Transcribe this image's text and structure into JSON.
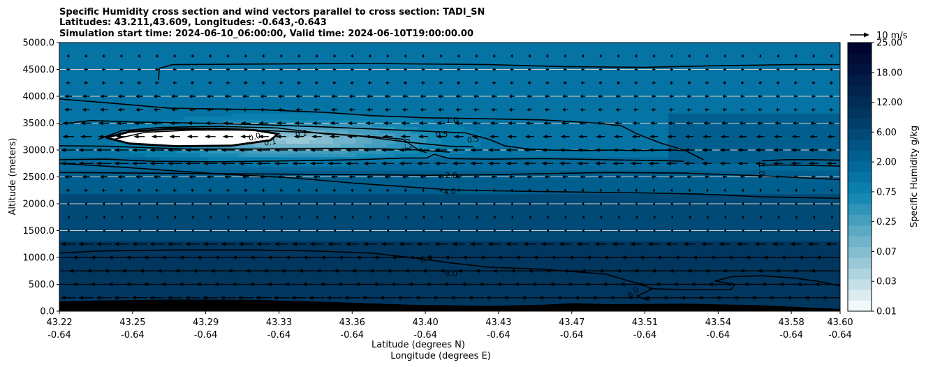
{
  "chart_data": {
    "type": "contourf",
    "title_lines": [
      "Specific Humidity cross section and wind vectors parallel to cross section: TADI_SN",
      "Latitudes: 43.211,43.609, Longitudes: -0.643,-0.643",
      "Simulation start time: 2024-06-10_06:00:00, Valid time: 2024-06-10T19:00:00.00"
    ],
    "xlabel_lines": [
      "Latitude (degrees N)",
      "Longitude (degrees E)"
    ],
    "ylabel": "Altitude (meters)",
    "xlim": [
      0,
      1
    ],
    "ylim": [
      0,
      5000
    ],
    "x_ticks": [
      {
        "pos": 0.0,
        "lat": "43.22",
        "lon": "-0.64"
      },
      {
        "pos": 0.0938,
        "lat": "43.25",
        "lon": "-0.64"
      },
      {
        "pos": 0.1875,
        "lat": "43.29",
        "lon": "-0.64"
      },
      {
        "pos": 0.2813,
        "lat": "43.33",
        "lon": "-0.64"
      },
      {
        "pos": 0.375,
        "lat": "43.36",
        "lon": "-0.64"
      },
      {
        "pos": 0.4688,
        "lat": "43.40",
        "lon": "-0.64"
      },
      {
        "pos": 0.5625,
        "lat": "43.43",
        "lon": "-0.64"
      },
      {
        "pos": 0.6563,
        "lat": "43.47",
        "lon": "-0.64"
      },
      {
        "pos": 0.75,
        "lat": "43.51",
        "lon": "-0.64"
      },
      {
        "pos": 0.8438,
        "lat": "43.54",
        "lon": "-0.64"
      },
      {
        "pos": 0.9375,
        "lat": "43.58",
        "lon": "-0.64"
      },
      {
        "pos": 1.0,
        "lat": "43.60",
        "lon": "-0.64"
      }
    ],
    "y_ticks": [
      {
        "value": 0,
        "label": "0.0"
      },
      {
        "value": 500,
        "label": "500.0"
      },
      {
        "value": 1000,
        "label": "1000.0"
      },
      {
        "value": 1500,
        "label": "1500.0"
      },
      {
        "value": 2000,
        "label": "2000.0"
      },
      {
        "value": 2500,
        "label": "2500.0"
      },
      {
        "value": 3000,
        "label": "3000.0"
      },
      {
        "value": 3500,
        "label": "3500.0"
      },
      {
        "value": 4000,
        "label": "4000.0"
      },
      {
        "value": 4500,
        "label": "4500.0"
      },
      {
        "value": 5000,
        "label": "5000.0"
      }
    ],
    "grid": "horizontal",
    "grid_color": "#d0d0d0",
    "colorbar": {
      "label": "Specific Humidity g/kg",
      "tick_labels": [
        "0.01",
        "0.03",
        "0.07",
        "0.25",
        "0.75",
        "2.00",
        "6.00",
        "12.00",
        "18.00",
        "25.00"
      ],
      "colors": [
        "#f2f9fa",
        "#dcedf0",
        "#c4e1e8",
        "#aed5df",
        "#99c9d7",
        "#85bed0",
        "#71b3ca",
        "#5ca9c4",
        "#469ebf",
        "#2f94ba",
        "#1689b4",
        "#0a7fad",
        "#0574a4",
        "#02699a",
        "#015f8f",
        "#015483",
        "#014a77",
        "#01406b",
        "#01365f",
        "#012c55",
        "#01234d",
        "#011c47",
        "#01143f",
        "#010c37",
        "#010630"
      ]
    },
    "humidity_bands": [
      {
        "y_bottom": 0,
        "y_top": 1300,
        "q": 9.5
      },
      {
        "y_bottom": 1300,
        "y_top": 2200,
        "q": 5.5
      },
      {
        "y_bottom": 2200,
        "y_top": 2600,
        "q": 3.0
      },
      {
        "y_bottom": 2600,
        "y_top": 2900,
        "q": 1.6
      },
      {
        "y_bottom": 2900,
        "y_top": 3700,
        "q": 1.2
      },
      {
        "y_bottom": 3700,
        "y_top": 5000,
        "q": 1.5
      }
    ],
    "dry_layer": {
      "x_min": 0.06,
      "x_max": 0.55,
      "y_min": 2700,
      "y_max": 3700,
      "q_min": 0.05
    },
    "moist_patch": {
      "x_min": 0.78,
      "x_max": 1.0,
      "y_min": 2750,
      "y_max": 3700,
      "q": 2.2
    },
    "white_region": [
      [
        0.06,
        3230
      ],
      [
        0.09,
        3340
      ],
      [
        0.14,
        3390
      ],
      [
        0.2,
        3400
      ],
      [
        0.25,
        3370
      ],
      [
        0.28,
        3300
      ],
      [
        0.27,
        3180
      ],
      [
        0.22,
        3080
      ],
      [
        0.15,
        3070
      ],
      [
        0.09,
        3120
      ],
      [
        0.06,
        3230
      ]
    ],
    "contours": [
      {
        "level": "upper",
        "points": [
          [
            0.127,
            4300
          ],
          [
            0.128,
            4520
          ],
          [
            0.145,
            4590
          ],
          [
            0.25,
            4600
          ],
          [
            0.4,
            4610
          ],
          [
            0.55,
            4590
          ],
          [
            0.65,
            4550
          ],
          [
            0.75,
            4540
          ],
          [
            0.85,
            4570
          ],
          [
            0.94,
            4590
          ],
          [
            1.0,
            4590
          ]
        ]
      },
      {
        "level": "1.0a",
        "points": [
          [
            0.0,
            3950
          ],
          [
            0.06,
            3880
          ],
          [
            0.14,
            3780
          ],
          [
            0.26,
            3750
          ],
          [
            0.34,
            3700
          ],
          [
            0.4,
            3640
          ],
          [
            0.47,
            3600
          ],
          [
            0.55,
            3580
          ],
          [
            0.62,
            3560
          ],
          [
            0.69,
            3500
          ],
          [
            0.72,
            3450
          ],
          [
            0.74,
            3300
          ],
          [
            0.77,
            3130
          ],
          [
            0.8,
            3000
          ],
          [
            0.825,
            2820
          ]
        ]
      },
      {
        "level": "0.5",
        "points": [
          [
            0.0,
            3480
          ],
          [
            0.04,
            3550
          ],
          [
            0.1,
            3520
          ],
          [
            0.18,
            3500
          ],
          [
            0.26,
            3470
          ],
          [
            0.34,
            3430
          ],
          [
            0.42,
            3380
          ],
          [
            0.5,
            3330
          ],
          [
            0.52,
            3320
          ],
          [
            0.55,
            3200
          ],
          [
            0.57,
            3080
          ],
          [
            0.6,
            3020
          ],
          [
            0.63,
            3000
          ],
          [
            0.67,
            2990
          ],
          [
            0.71,
            3000
          ],
          [
            0.74,
            2990
          ],
          [
            0.78,
            3000
          ],
          [
            0.8,
            2990
          ]
        ]
      },
      {
        "level": "0.1",
        "points": [
          [
            0.05,
            3200
          ],
          [
            0.08,
            3360
          ],
          [
            0.13,
            3420
          ],
          [
            0.2,
            3440
          ],
          [
            0.28,
            3410
          ],
          [
            0.34,
            3300
          ],
          [
            0.41,
            3240
          ],
          [
            0.44,
            3200
          ],
          [
            0.46,
            3000
          ],
          [
            0.47,
            2950
          ]
        ]
      },
      {
        "level": "0.2",
        "points": [
          [
            0.07,
            3200
          ],
          [
            0.11,
            3330
          ],
          [
            0.17,
            3370
          ],
          [
            0.25,
            3370
          ],
          [
            0.33,
            3320
          ],
          [
            0.38,
            3270
          ],
          [
            0.45,
            3140
          ],
          [
            0.5,
            3070
          ],
          [
            0.53,
            3060
          ]
        ]
      },
      {
        "level": "mid1",
        "points": [
          [
            0.0,
            3080
          ],
          [
            0.06,
            3070
          ],
          [
            0.16,
            3020
          ],
          [
            0.26,
            3020
          ],
          [
            0.34,
            3030
          ],
          [
            0.42,
            3020
          ],
          [
            0.46,
            3000
          ],
          [
            0.5,
            2960
          ]
        ]
      },
      {
        "level": "mid2",
        "points": [
          [
            0.0,
            2820
          ],
          [
            0.06,
            2830
          ],
          [
            0.12,
            2790
          ],
          [
            0.2,
            2780
          ],
          [
            0.3,
            2800
          ],
          [
            0.38,
            2820
          ],
          [
            0.44,
            2850
          ],
          [
            0.47,
            2850
          ],
          [
            0.48,
            2920
          ],
          [
            0.5,
            2840
          ],
          [
            0.55,
            2830
          ],
          [
            0.62,
            2840
          ],
          [
            0.7,
            2820
          ],
          [
            0.78,
            2800
          ],
          [
            0.8,
            2790
          ]
        ]
      },
      {
        "level": "2.0",
        "points": [
          [
            0.0,
            2580
          ],
          [
            0.1,
            2570
          ],
          [
            0.2,
            2560
          ],
          [
            0.3,
            2550
          ],
          [
            0.4,
            2540
          ],
          [
            0.47,
            2530
          ],
          [
            0.55,
            2540
          ],
          [
            0.62,
            2560
          ],
          [
            0.7,
            2580
          ],
          [
            0.8,
            2570
          ],
          [
            0.9,
            2520
          ],
          [
            1.0,
            2450
          ]
        ]
      },
      {
        "level": "4.0",
        "points": [
          [
            0.0,
            2750
          ],
          [
            0.08,
            2680
          ],
          [
            0.2,
            2560
          ],
          [
            0.3,
            2480
          ],
          [
            0.38,
            2380
          ],
          [
            0.46,
            2300
          ],
          [
            0.5,
            2260
          ],
          [
            0.56,
            2240
          ],
          [
            0.65,
            2220
          ],
          [
            0.75,
            2200
          ],
          [
            0.82,
            2180
          ],
          [
            0.9,
            2130
          ],
          [
            1.0,
            2100
          ]
        ]
      },
      {
        "level": "1.0b",
        "points": [
          [
            0.9,
            2800
          ],
          [
            0.93,
            2820
          ],
          [
            0.97,
            2820
          ],
          [
            1.0,
            2810
          ]
        ]
      },
      {
        "level": "1.0c",
        "points": [
          [
            0.9,
            2720
          ],
          [
            0.93,
            2720
          ],
          [
            0.97,
            2710
          ],
          [
            1.0,
            2700
          ]
        ]
      },
      {
        "level": "8.0",
        "points": [
          [
            0.0,
            1080
          ],
          [
            0.05,
            1120
          ],
          [
            0.15,
            1140
          ],
          [
            0.25,
            1140
          ],
          [
            0.33,
            1120
          ],
          [
            0.4,
            1080
          ],
          [
            0.45,
            1000
          ],
          [
            0.5,
            900
          ],
          [
            0.55,
            820
          ],
          [
            0.62,
            780
          ],
          [
            0.7,
            690
          ],
          [
            0.74,
            520
          ],
          [
            0.76,
            420
          ],
          [
            0.75,
            350
          ],
          [
            0.74,
            280
          ],
          [
            0.755,
            200
          ]
        ]
      },
      {
        "level": "8.0b",
        "points": [
          [
            0.755,
            420
          ],
          [
            0.8,
            400
          ],
          [
            0.86,
            400
          ],
          [
            0.865,
            500
          ],
          [
            0.84,
            560
          ],
          [
            0.86,
            640
          ],
          [
            0.9,
            660
          ],
          [
            0.94,
            620
          ],
          [
            0.97,
            560
          ],
          [
            1.0,
            470
          ]
        ]
      }
    ],
    "contour_labels": [
      {
        "text": "1.0",
        "x": 0.503,
        "y": 3560,
        "rot": 0
      },
      {
        "text": "0.5",
        "x": 0.49,
        "y": 3300,
        "rot": 0
      },
      {
        "text": "0.5",
        "x": 0.53,
        "y": 3200,
        "rot": -10
      },
      {
        "text": "0.1",
        "x": 0.27,
        "y": 3150,
        "rot": -10
      },
      {
        "text": "0.0",
        "x": 0.25,
        "y": 3250,
        "rot": -15
      },
      {
        "text": "0.2",
        "x": 0.31,
        "y": 3300,
        "rot": -15
      },
      {
        "text": "0.1",
        "x": 0.446,
        "y": 3100,
        "rot": 80
      },
      {
        "text": "2.0",
        "x": 0.502,
        "y": 2530,
        "rot": 0
      },
      {
        "text": "4.0",
        "x": 0.5,
        "y": 2230,
        "rot": -5
      },
      {
        "text": "1.0",
        "x": 0.9,
        "y": 2640,
        "rot": 90
      },
      {
        "text": "8.0",
        "x": 0.47,
        "y": 980,
        "rot": -10
      },
      {
        "text": "8.0",
        "x": 0.502,
        "y": 700,
        "rot": 0
      },
      {
        "text": "8.0",
        "x": 0.735,
        "y": 350,
        "rot": -45
      }
    ],
    "terrain": [
      [
        0.0,
        180
      ],
      [
        0.05,
        200
      ],
      [
        0.15,
        215
      ],
      [
        0.25,
        210
      ],
      [
        0.35,
        170
      ],
      [
        0.45,
        120
      ],
      [
        0.55,
        100
      ],
      [
        0.62,
        120
      ],
      [
        0.66,
        150
      ],
      [
        0.7,
        130
      ],
      [
        0.8,
        140
      ],
      [
        0.9,
        110
      ],
      [
        1.0,
        40
      ]
    ],
    "wind_reference": {
      "speed": 10,
      "label": "10 m/s"
    },
    "wind_rows": [
      {
        "y": 4750,
        "u": [
          -0.8,
          -0.6
        ]
      },
      {
        "y": 4500,
        "u": [
          -1.0,
          -0.8
        ]
      },
      {
        "y": 4250,
        "u": [
          -1.0,
          -0.9
        ]
      },
      {
        "y": 4000,
        "u": [
          -2.0,
          -1.0
        ]
      },
      {
        "y": 3750,
        "u": [
          -2.0,
          -1.0
        ]
      },
      {
        "y": 3500,
        "u": [
          -3.0,
          -1.5
        ]
      },
      {
        "y": 3250,
        "u": [
          -3.0,
          -2.0
        ]
      },
      {
        "y": 3000,
        "u": [
          -4.0,
          -2.5
        ]
      },
      {
        "y": 2750,
        "u": [
          -4.0,
          -2.5
        ]
      },
      {
        "y": 2500,
        "u": [
          -2.0,
          -1.0
        ]
      },
      {
        "y": 2250,
        "u": [
          -1.0,
          -0.5
        ]
      },
      {
        "y": 2000,
        "u": [
          -0.6,
          -0.4
        ]
      },
      {
        "y": 1750,
        "u": [
          -0.4,
          -0.3
        ]
      },
      {
        "y": 1500,
        "u": [
          -0.4,
          -0.3
        ]
      },
      {
        "y": 1250,
        "u": [
          -4.0,
          -3.0
        ]
      },
      {
        "y": 1000,
        "u": [
          -7.0,
          -8.0
        ]
      },
      {
        "y": 750,
        "u": [
          -9.0,
          -11.0
        ]
      },
      {
        "y": 500,
        "u": [
          -7.0,
          -9.0
        ]
      },
      {
        "y": 250,
        "u": [
          -4.0,
          -5.0
        ]
      }
    ],
    "wind_columns": 44
  }
}
